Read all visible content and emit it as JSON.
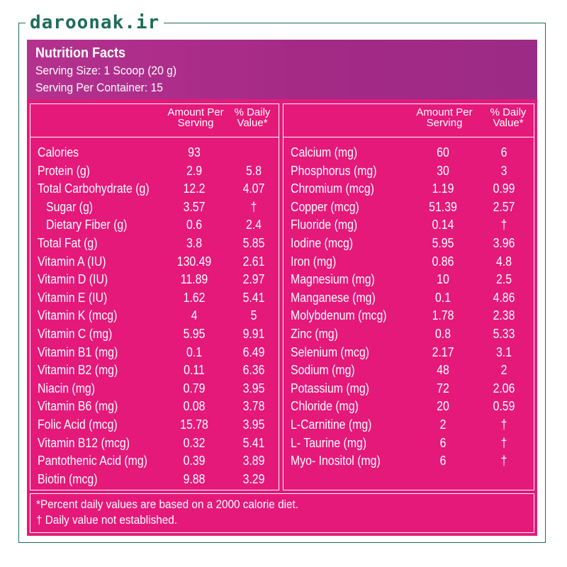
{
  "brand": "daroonak.ir",
  "header": {
    "title": "Nutrition Facts",
    "serving_size": "Serving Size: 1 Scoop (20 g)",
    "servings": "Serving Per Container: 15"
  },
  "columns": {
    "amount_label_1": "Amount Per",
    "amount_label_2": "Serving",
    "dv_label_1": "% Daily",
    "dv_label_2": "Value*"
  },
  "left_rows": [
    {
      "name": "Calories",
      "amount": "93",
      "dv": ""
    },
    {
      "name": "Protein (g)",
      "amount": "2.9",
      "dv": "5.8"
    },
    {
      "name": "Total Carbohydrate (g)",
      "amount": "12.2",
      "dv": "4.07"
    },
    {
      "name": "Sugar (g)",
      "amount": "3.57",
      "dv": "†"
    },
    {
      "name": "Dietary Fiber (g)",
      "amount": "0.6",
      "dv": "2.4"
    },
    {
      "name": "Total Fat (g)",
      "amount": "3.8",
      "dv": "5.85"
    },
    {
      "name": "Vitamin A (IU)",
      "amount": "130.49",
      "dv": "2.61"
    },
    {
      "name": "Vitamin D (IU)",
      "amount": "11.89",
      "dv": "2.97"
    },
    {
      "name": "Vitamin E (IU)",
      "amount": "1.62",
      "dv": "5.41"
    },
    {
      "name": "Vitamin K (mcg)",
      "amount": "4",
      "dv": "5"
    },
    {
      "name": "Vitamin C (mg)",
      "amount": "5.95",
      "dv": "9.91"
    },
    {
      "name": "Vitamin B1 (mg)",
      "amount": "0.1",
      "dv": "6.49"
    },
    {
      "name": "Vitamin B2 (mg)",
      "amount": "0.11",
      "dv": "6.36"
    },
    {
      "name": "Niacin (mg)",
      "amount": "0.79",
      "dv": "3.95"
    },
    {
      "name": "Vitamin B6 (mg)",
      "amount": "0.08",
      "dv": "3.78"
    },
    {
      "name": "Folic Acid (mcg)",
      "amount": "15.78",
      "dv": "3.95"
    },
    {
      "name": "Vitamin B12 (mcg)",
      "amount": "0.32",
      "dv": "5.41"
    },
    {
      "name": "Pantothenic Acid (mg)",
      "amount": "0.39",
      "dv": "3.89"
    },
    {
      "name": "Biotin (mcg)",
      "amount": "9.88",
      "dv": "3.29"
    }
  ],
  "right_rows": [
    {
      "name": "Calcium (mg)",
      "amount": "60",
      "dv": "6"
    },
    {
      "name": "Phosphorus (mg)",
      "amount": "30",
      "dv": "3"
    },
    {
      "name": "Chromium (mcg)",
      "amount": "1.19",
      "dv": "0.99"
    },
    {
      "name": "Copper (mcg)",
      "amount": "51.39",
      "dv": "2.57"
    },
    {
      "name": "Fluoride (mg)",
      "amount": "0.14",
      "dv": "†"
    },
    {
      "name": "Iodine (mcg)",
      "amount": "5.95",
      "dv": "3.96"
    },
    {
      "name": "Iron (mg)",
      "amount": "0.86",
      "dv": "4.8"
    },
    {
      "name": "Magnesium (mg)",
      "amount": "10",
      "dv": "2.5"
    },
    {
      "name": "Manganese (mg)",
      "amount": "0.1",
      "dv": "4.86"
    },
    {
      "name": "Molybdenum (mcg)",
      "amount": "1.78",
      "dv": "2.38"
    },
    {
      "name": "Zinc (mg)",
      "amount": "0.8",
      "dv": "5.33"
    },
    {
      "name": "Selenium (mcg)",
      "amount": "2.17",
      "dv": "3.1"
    },
    {
      "name": "Sodium (mg)",
      "amount": "48",
      "dv": "2"
    },
    {
      "name": "Potassium (mg)",
      "amount": "72",
      "dv": "2.06"
    },
    {
      "name": "Chloride (mg)",
      "amount": "20",
      "dv": "0.59"
    },
    {
      "name": "L-Carnitine (mg)",
      "amount": "2",
      "dv": "†"
    },
    {
      "name": "L- Taurine (mg)",
      "amount": "6",
      "dv": "†"
    },
    {
      "name": "Myo- Inositol (mg)",
      "amount": "6",
      "dv": "†"
    }
  ],
  "footer": {
    "note1": "*Percent daily values are based on a 2000 calorie diet.",
    "note2": "† Daily value not established."
  },
  "colors": {
    "panel": "#e5197a",
    "header": "#a42a86",
    "frame": "#1f6b5a"
  }
}
